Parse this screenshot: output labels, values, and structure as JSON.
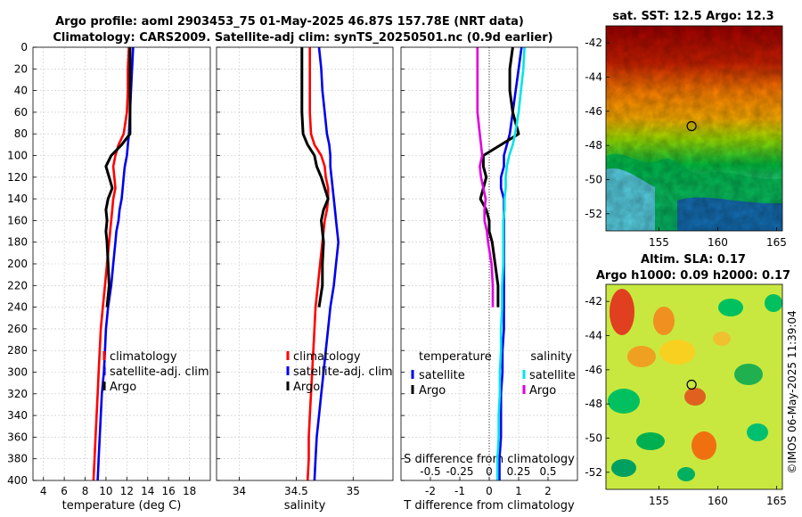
{
  "titles": {
    "line1": "Argo profile: aoml 2903453_75 01-May-2025 46.87S 157.78E (NRT data)",
    "line2": "Climatology: CARS2009. Satellite-adj clim: synTS_20250501.nc (0.9d earlier)",
    "sst_map": "sat. SST: 12.5 Argo: 12.3",
    "sla_line1": "Altim. SLA: 0.17",
    "sla_line2": "Argo h1000: 0.09 h2000: 0.17",
    "credit": "©IMOS 06-May-2025 11:39:04"
  },
  "colors": {
    "climatology": "#ff0000",
    "satellite": "#0000ee",
    "argo": "#000000",
    "sal_satellite": "#00e5e5",
    "sal_argo": "#e000e0"
  },
  "chart_data": [
    {
      "type": "line",
      "name": "temperature-profile",
      "xlabel": "temperature (deg C)",
      "ylabel": "",
      "xlim": [
        3,
        20
      ],
      "ylim": [
        400,
        0
      ],
      "xticks": [
        "4",
        "6",
        "8",
        "10",
        "12",
        "14",
        "16",
        "18"
      ],
      "yticks": [
        "0",
        "20",
        "40",
        "60",
        "80",
        "100",
        "120",
        "140",
        "160",
        "180",
        "200",
        "220",
        "240",
        "260",
        "280",
        "300",
        "320",
        "340",
        "360",
        "380",
        "400"
      ],
      "legend": [
        "climatology",
        "satellite-adj. clim",
        "Argo"
      ],
      "depth": [
        0,
        20,
        40,
        60,
        80,
        90,
        100,
        110,
        120,
        130,
        140,
        150,
        160,
        170,
        180,
        200,
        220,
        240,
        260,
        280,
        300,
        320,
        340,
        360,
        380,
        400
      ],
      "series": [
        {
          "name": "climatology",
          "values": [
            12.2,
            12.1,
            12.1,
            12.0,
            11.7,
            11.2,
            10.9,
            10.7,
            10.8,
            10.9,
            10.7,
            10.6,
            10.5,
            10.4,
            10.3,
            10.1,
            9.9,
            9.7,
            9.5,
            9.4,
            9.3,
            9.2,
            9.1,
            9.0,
            8.9,
            8.8
          ]
        },
        {
          "name": "satellite-adj. clim",
          "values": [
            12.6,
            12.5,
            12.4,
            12.3,
            12.2,
            12.1,
            12.0,
            11.8,
            11.7,
            11.6,
            11.5,
            11.3,
            11.2,
            11.0,
            10.9,
            10.7,
            10.5,
            10.2,
            10.0,
            9.9,
            9.8,
            9.6,
            9.5,
            9.4,
            9.3,
            9.2
          ]
        },
        {
          "name": "Argo",
          "values": [
            12.3,
            12.3,
            12.3,
            12.3,
            12.3,
            11.5,
            10.5,
            10.0,
            10.3,
            10.6,
            10.2,
            10.0,
            10.1,
            10.0,
            10.1,
            10.2,
            10.3,
            10.1,
            null,
            null,
            null,
            null,
            null,
            null,
            null,
            null
          ]
        }
      ]
    },
    {
      "type": "line",
      "name": "salinity-profile",
      "xlabel": "salinity",
      "xlim": [
        33.8,
        35.35
      ],
      "ylim": [
        400,
        0
      ],
      "xticks": [
        "34",
        "34.5",
        "35"
      ],
      "legend": [
        "climatology",
        "satellite-adj. clim",
        "Argo"
      ],
      "depth": [
        0,
        20,
        40,
        60,
        80,
        90,
        100,
        110,
        120,
        130,
        140,
        150,
        160,
        170,
        180,
        200,
        220,
        240,
        260,
        280,
        300,
        320,
        340,
        360,
        380,
        400
      ],
      "series": [
        {
          "name": "climatology",
          "values": [
            34.62,
            34.62,
            34.62,
            34.62,
            34.63,
            34.66,
            34.72,
            34.75,
            34.76,
            34.78,
            34.78,
            34.77,
            34.75,
            34.74,
            34.73,
            34.71,
            34.69,
            34.67,
            34.66,
            34.65,
            34.64,
            34.63,
            34.62,
            34.61,
            34.61,
            34.6
          ]
        },
        {
          "name": "satellite-adj. clim",
          "values": [
            34.7,
            34.72,
            34.73,
            34.75,
            34.77,
            34.79,
            34.8,
            34.8,
            34.81,
            34.82,
            34.83,
            34.84,
            34.85,
            34.86,
            34.87,
            34.85,
            34.83,
            34.8,
            34.78,
            34.76,
            34.74,
            34.72,
            34.7,
            34.68,
            34.67,
            34.66
          ]
        },
        {
          "name": "Argo",
          "values": [
            34.55,
            34.55,
            34.55,
            34.55,
            34.56,
            34.6,
            34.66,
            34.68,
            34.72,
            34.75,
            34.78,
            34.74,
            34.72,
            34.73,
            34.74,
            34.73,
            34.73,
            34.7,
            null,
            null,
            null,
            null,
            null,
            null,
            null,
            null
          ]
        }
      ]
    },
    {
      "type": "line",
      "name": "difference-profile",
      "xlabel": "T difference from climatology",
      "xlabel_top": "S difference from climatology",
      "xlim": [
        -3,
        3
      ],
      "ylim": [
        400,
        0
      ],
      "xticks": [
        "-2",
        "-1",
        "0",
        "1",
        "2"
      ],
      "xticks_top": [
        "-0.5",
        "-0.25",
        "0",
        "0.25",
        "0.5"
      ],
      "legend_left_title": "temperature",
      "legend_right_title": "salinity",
      "legend_left": [
        "satellite",
        "Argo"
      ],
      "legend_right": [
        "satellite",
        "Argo"
      ],
      "depth": [
        0,
        20,
        40,
        60,
        80,
        90,
        100,
        110,
        120,
        130,
        140,
        150,
        160,
        170,
        180,
        200,
        220,
        240,
        260,
        280,
        300,
        320,
        340,
        360,
        380,
        400
      ],
      "series": [
        {
          "name": "T satellite",
          "values": [
            1.1,
            1.0,
            0.9,
            0.8,
            0.7,
            0.6,
            0.5,
            0.5,
            0.4,
            0.4,
            0.5,
            0.5,
            0.5,
            0.5,
            0.5,
            0.5,
            0.5,
            0.5,
            0.5,
            0.45,
            0.45,
            0.4,
            0.4,
            0.4,
            0.35,
            0.35
          ]
        },
        {
          "name": "T Argo",
          "values": [
            0.8,
            0.7,
            0.7,
            0.8,
            1.0,
            0.4,
            -0.2,
            -0.2,
            -0.1,
            -0.2,
            -0.3,
            -0.1,
            0.0,
            0.0,
            0.1,
            0.2,
            0.3,
            0.3,
            null,
            null,
            null,
            null,
            null,
            null,
            null,
            null
          ]
        },
        {
          "name": "S satellite",
          "values": [
            0.3,
            0.29,
            0.27,
            0.25,
            0.22,
            0.2,
            0.17,
            0.15,
            0.14,
            0.14,
            0.13,
            0.13,
            0.12,
            0.12,
            0.12,
            0.12,
            0.11,
            0.11,
            0.1,
            0.1,
            0.09,
            0.09,
            0.08,
            0.08,
            0.07,
            0.07
          ]
        },
        {
          "name": "S Argo",
          "values": [
            -0.1,
            -0.1,
            -0.1,
            -0.1,
            -0.08,
            -0.07,
            -0.06,
            -0.08,
            -0.07,
            -0.05,
            -0.03,
            -0.04,
            -0.04,
            -0.02,
            -0.01,
            0.02,
            0.03,
            0.03,
            null,
            null,
            null,
            null,
            null,
            null,
            null,
            null
          ]
        }
      ]
    },
    {
      "type": "heatmap",
      "name": "sst-map",
      "title": "sat. SST: 12.5 Argo: 12.3",
      "xticks": [
        "155",
        "160",
        "165"
      ],
      "yticks": [
        "-42",
        "-44",
        "-46",
        "-48",
        "-50",
        "-52"
      ],
      "xlim": [
        150.5,
        165.5
      ],
      "ylim": [
        -53,
        -41
      ],
      "marker": {
        "lon": 157.78,
        "lat": -46.87
      }
    },
    {
      "type": "heatmap",
      "name": "sla-map",
      "title": "Altim. SLA: 0.17",
      "xticks": [
        "155",
        "160",
        "165"
      ],
      "yticks": [
        "-42",
        "-44",
        "-46",
        "-48",
        "-50",
        "-52"
      ],
      "xlim": [
        150.5,
        165.5
      ],
      "ylim": [
        -53,
        -41
      ],
      "marker": {
        "lon": 157.78,
        "lat": -46.87
      }
    }
  ]
}
